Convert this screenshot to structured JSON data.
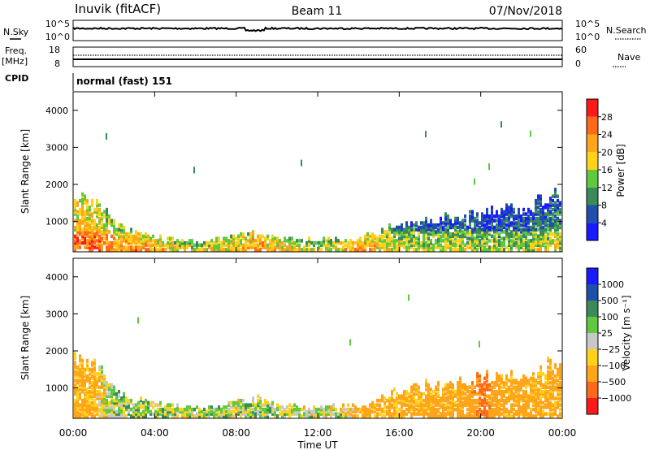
{
  "header": {
    "station": "Inuvik (fitACF)",
    "beam": "Beam 11",
    "date": "07/Nov/2018"
  },
  "top_panels": {
    "nsky_label": "N.Sky",
    "nsky_ticks": [
      "10^5",
      "10^0"
    ],
    "nsearch_label": "N.Search",
    "nsearch_ticks": [
      "10^5",
      "10^0"
    ],
    "freq_label": "Freq.",
    "freq_unit": "[MHz]",
    "freq_ticks": [
      "18",
      "8"
    ],
    "nave_label": "Nave",
    "nave_ticks": [
      "60",
      "0"
    ],
    "cpid_label": "CPID",
    "cpid_value": "normal (fast) 151"
  },
  "colors": {
    "power": [
      "#1a1aff",
      "#1f4faa",
      "#3a8a5a",
      "#5fc93f",
      "#ffd21a",
      "#ffa51a",
      "#ff6a1a",
      "#ff1a1a"
    ],
    "velocity": [
      "#ff1a1a",
      "#ff6a1a",
      "#ffa51a",
      "#ffd21a",
      "#c8c8c8",
      "#5fc93f",
      "#3a8a5a",
      "#1f4faa",
      "#1a1aff"
    ]
  },
  "chart_data": [
    {
      "type": "heatmap",
      "panel": "power",
      "ylabel": "Slant Range [km]",
      "xlabel": "",
      "yticks": [
        "1000",
        "2000",
        "3000",
        "4000"
      ],
      "ylim": [
        180,
        4500
      ],
      "colorbar_label": "Power [dB]",
      "colorbar_ticks": [
        "4",
        "8",
        "12",
        "16",
        "20",
        "24",
        "28"
      ],
      "clim": [
        0,
        32
      ],
      "x_hours": [
        0,
        1,
        2,
        3,
        4,
        5,
        6,
        7,
        8,
        9,
        10,
        11,
        12,
        13,
        14,
        15,
        16,
        17,
        18,
        19,
        20,
        21,
        22,
        23,
        24
      ],
      "lower_band_km": [
        1700,
        1600,
        900,
        650,
        550,
        450,
        450,
        450,
        600,
        650,
        500,
        450,
        450,
        450,
        500,
        650,
        900,
        1000,
        1050,
        1150,
        1200,
        1350,
        1250,
        1500,
        1800
      ],
      "band_power_db": [
        24,
        24,
        20,
        22,
        20,
        18,
        16,
        18,
        18,
        22,
        20,
        18,
        16,
        18,
        24,
        18,
        16,
        14,
        14,
        14,
        12,
        12,
        12,
        14,
        14
      ]
    },
    {
      "type": "heatmap",
      "panel": "velocity",
      "ylabel": "Slant Range [km]",
      "xlabel": "Time UT",
      "yticks": [
        "1000",
        "2000",
        "3000",
        "4000"
      ],
      "ylim": [
        180,
        4500
      ],
      "xticks": [
        "00:00",
        "04:00",
        "08:00",
        "12:00",
        "16:00",
        "20:00",
        "00:00"
      ],
      "xlim": [
        0,
        24
      ],
      "colorbar_label": "Velocity [m s⁻¹]",
      "colorbar_ticks": [
        "1000",
        "500",
        "100",
        "25",
        "−25",
        "−100",
        "−500",
        "−1000"
      ],
      "x_hours": [
        0,
        1,
        2,
        3,
        4,
        5,
        6,
        7,
        8,
        9,
        10,
        11,
        12,
        13,
        14,
        15,
        16,
        17,
        18,
        19,
        20,
        21,
        22,
        23,
        24
      ],
      "lower_band_km": [
        1700,
        1600,
        900,
        650,
        550,
        450,
        450,
        450,
        600,
        650,
        500,
        450,
        450,
        450,
        500,
        650,
        900,
        1000,
        1050,
        1150,
        1200,
        1350,
        1250,
        1500,
        1800
      ],
      "band_velocity_ms": [
        -150,
        -150,
        50,
        50,
        50,
        0,
        0,
        50,
        0,
        50,
        50,
        0,
        0,
        0,
        -150,
        -150,
        -150,
        -150,
        -200,
        -200,
        -600,
        -150,
        -200,
        -150,
        -200
      ]
    }
  ]
}
